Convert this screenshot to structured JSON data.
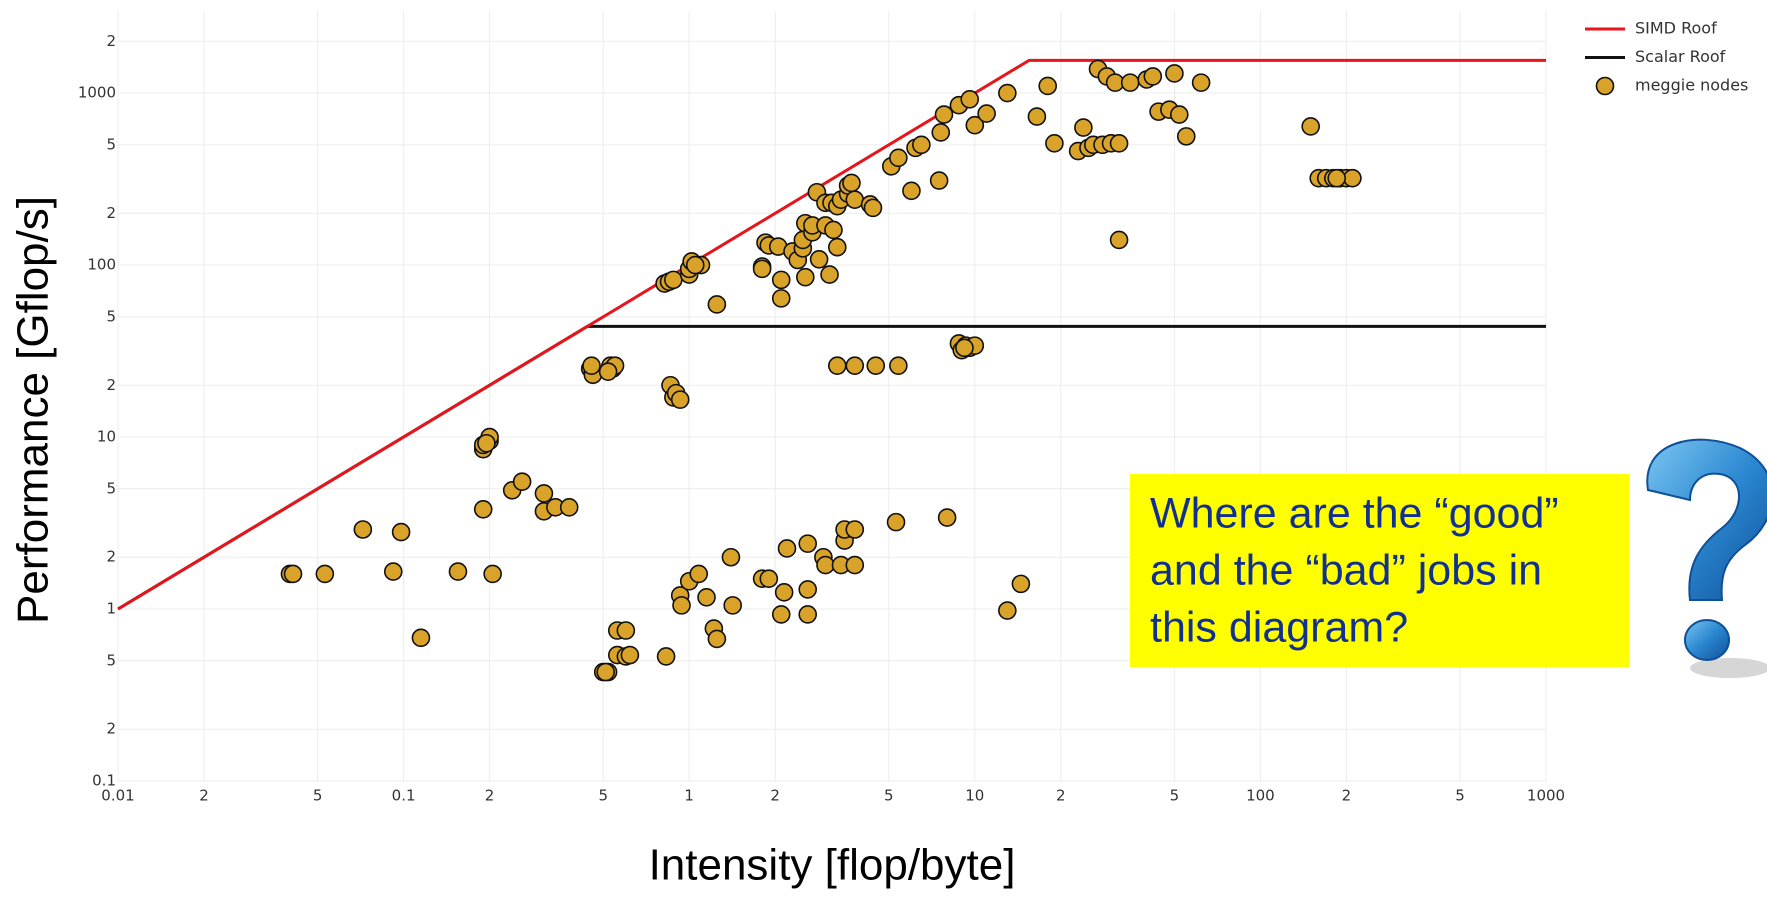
{
  "chart_data": {
    "type": "scatter",
    "x_label": "Intensity [flop/byte]",
    "y_label": "Performance [Gflop/s]",
    "log_x": true,
    "log_y": true,
    "grid": true,
    "legend": "top-right",
    "xlim": [
      0.01,
      1000
    ],
    "ylim": [
      0.1,
      3000
    ],
    "xticks": [
      0.01,
      {
        "value": 0.02,
        "label": "2"
      },
      {
        "value": 0.05,
        "label": "5"
      },
      0.1,
      {
        "value": 0.2,
        "label": "2"
      },
      {
        "value": 0.5,
        "label": "5"
      },
      1,
      {
        "value": 2,
        "label": "2"
      },
      {
        "value": 5,
        "label": "5"
      },
      10,
      {
        "value": 20,
        "label": "2"
      },
      {
        "value": 50,
        "label": "5"
      },
      100,
      {
        "value": 200,
        "label": "2"
      },
      {
        "value": 500,
        "label": "5"
      },
      1000
    ],
    "yticks": [
      0.1,
      {
        "value": 0.2,
        "label": "2"
      },
      {
        "value": 0.5,
        "label": "5"
      },
      1,
      {
        "value": 2,
        "label": "2"
      },
      {
        "value": 5,
        "label": "5"
      },
      10,
      {
        "value": 20,
        "label": "2"
      },
      {
        "value": 50,
        "label": "5"
      },
      100,
      {
        "value": 200,
        "label": "2"
      },
      {
        "value": 500,
        "label": "5"
      },
      1000,
      {
        "value": 2000,
        "label": "2"
      }
    ],
    "series": [
      {
        "name": "SIMD Roof",
        "type": "line",
        "color": "#e8141b",
        "x": [
          0.01,
          15.5,
          1000
        ],
        "values": [
          1,
          1550,
          1550
        ]
      },
      {
        "name": "Scalar Roof",
        "type": "line",
        "color": "#111111",
        "x": [
          0.01,
          0.44,
          1000
        ],
        "values": [
          1,
          44,
          44
        ]
      },
      {
        "name": "meggie nodes",
        "type": "markers",
        "color": "#d9a32a",
        "x": [
          0.04,
          0.041,
          0.053,
          0.072,
          0.092,
          0.098,
          0.115,
          0.155,
          0.19,
          0.205,
          0.24,
          0.26,
          0.31,
          0.31,
          0.34,
          0.38,
          0.19,
          0.19,
          0.2,
          0.2,
          0.195,
          0.45,
          0.46,
          0.46,
          0.455,
          0.53,
          0.54,
          0.55,
          0.52,
          0.86,
          0.88,
          0.9,
          0.93,
          0.5,
          0.52,
          0.51,
          0.56,
          0.6,
          0.56,
          0.6,
          0.62,
          0.83,
          0.93,
          0.94,
          1.0,
          1.08,
          1.15,
          1.22,
          1.25,
          1.4,
          1.42,
          1.8,
          1.9,
          2.1,
          2.15,
          2.2,
          2.6,
          2.6,
          2.6,
          2.95,
          3.0,
          3.4,
          3.5,
          3.5,
          3.8,
          3.8,
          5.3,
          8.0,
          13,
          14.5,
          3.3,
          3.8,
          4.5,
          5.4,
          8.8,
          9,
          9.3,
          9.6,
          10,
          9.2,
          0.82,
          0.85,
          0.88,
          1.0,
          1.0,
          1.02,
          1.1,
          1.05,
          1.25,
          1.8,
          1.8,
          1.85,
          1.9,
          2.05,
          2.1,
          2.1,
          2.3,
          2.4,
          2.5,
          2.5,
          2.55,
          2.55,
          2.7,
          2.7,
          2.85,
          2.8,
          3.0,
          3.0,
          3.1,
          3.15,
          3.2,
          3.3,
          3.3,
          3.4,
          3.6,
          3.6,
          3.7,
          3.8,
          4.3,
          4.4,
          5.1,
          5.4,
          6.0,
          6.2,
          6.5,
          7.5,
          7.6,
          7.8,
          8.8,
          9.6,
          10,
          11,
          13,
          16.5,
          18,
          19,
          23,
          24,
          25,
          26,
          28,
          27,
          29,
          30,
          31,
          32,
          32,
          35,
          40,
          42,
          44,
          48,
          50,
          52,
          55,
          62,
          150,
          160,
          170,
          180,
          190,
          200,
          210,
          185
        ],
        "values": [
          1.6,
          1.6,
          1.6,
          2.9,
          1.65,
          2.8,
          0.68,
          1.65,
          3.8,
          1.6,
          4.9,
          5.5,
          4.7,
          3.7,
          3.9,
          3.9,
          8.5,
          9.0,
          9.5,
          10,
          9.2,
          25,
          24,
          23,
          26,
          26,
          25,
          26,
          24,
          20,
          17,
          18,
          16.5,
          0.43,
          0.43,
          0.43,
          0.75,
          0.75,
          0.54,
          0.53,
          0.54,
          0.53,
          1.2,
          1.05,
          1.45,
          1.6,
          1.17,
          0.77,
          0.67,
          2.0,
          1.05,
          1.5,
          1.5,
          0.93,
          1.25,
          2.25,
          0.93,
          2.4,
          1.3,
          2.0,
          1.8,
          1.8,
          2.5,
          2.9,
          2.9,
          1.8,
          3.2,
          3.4,
          0.98,
          1.4,
          26,
          26,
          26,
          26,
          35,
          32,
          34,
          33,
          34,
          33,
          78,
          80,
          82,
          88,
          95,
          105,
          100,
          100,
          59,
          98,
          95,
          135,
          130,
          128,
          82,
          64,
          120,
          107,
          125,
          140,
          85,
          175,
          155,
          170,
          108,
          265,
          230,
          170,
          88,
          230,
          160,
          127,
          220,
          240,
          260,
          290,
          300,
          240,
          225,
          215,
          375,
          420,
          270,
          480,
          500,
          310,
          590,
          750,
          850,
          920,
          650,
          760,
          1000,
          730,
          1100,
          510,
          460,
          630,
          480,
          500,
          500,
          1380,
          1250,
          510,
          1150,
          510,
          140,
          1150,
          1200,
          1250,
          780,
          800,
          1300,
          750,
          560,
          1150,
          640,
          320,
          320,
          320,
          320,
          320,
          320,
          320
        ]
      }
    ],
    "annotation": [
      "Where are the “good”",
      "and the “bad” jobs in",
      "this diagram?"
    ]
  }
}
